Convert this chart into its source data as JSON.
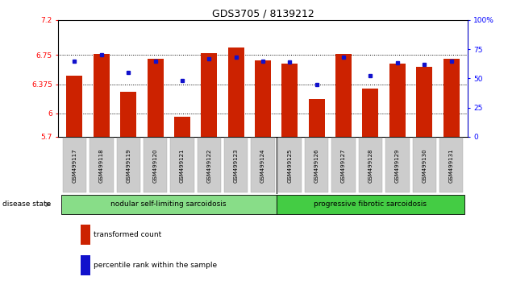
{
  "title": "GDS3705 / 8139212",
  "samples": [
    "GSM499117",
    "GSM499118",
    "GSM499119",
    "GSM499120",
    "GSM499121",
    "GSM499122",
    "GSM499123",
    "GSM499124",
    "GSM499125",
    "GSM499126",
    "GSM499127",
    "GSM499128",
    "GSM499129",
    "GSM499130",
    "GSM499131"
  ],
  "transformed_count": [
    6.48,
    6.76,
    6.28,
    6.7,
    5.96,
    6.77,
    6.85,
    6.68,
    6.64,
    6.18,
    6.76,
    6.32,
    6.64,
    6.6,
    6.7
  ],
  "percentile_rank": [
    65,
    70,
    55,
    65,
    48,
    67,
    68,
    65,
    64,
    45,
    68,
    52,
    63,
    62,
    65
  ],
  "ylim_left": [
    5.7,
    7.2
  ],
  "ylim_right": [
    0,
    100
  ],
  "yticks_left": [
    5.7,
    6.0,
    6.375,
    6.75,
    7.2
  ],
  "ytick_labels_left": [
    "5.7",
    "6",
    "6.375",
    "6.75",
    "7.2"
  ],
  "yticks_right": [
    0,
    25,
    50,
    75,
    100
  ],
  "ytick_labels_right": [
    "0",
    "25",
    "50",
    "75",
    "100%"
  ],
  "hlines": [
    6.0,
    6.375,
    6.75
  ],
  "bar_color": "#cc2200",
  "dot_color": "#1111cc",
  "group1_label": "nodular self-limiting sarcoidosis",
  "group2_label": "progressive fibrotic sarcoidosis",
  "group1_count": 8,
  "group2_count": 7,
  "disease_state_label": "disease state",
  "legend_bar_label": "transformed count",
  "legend_dot_label": "percentile rank within the sample",
  "group1_color": "#88dd88",
  "group2_color": "#44cc44",
  "xlab_bg_color": "#cccccc"
}
